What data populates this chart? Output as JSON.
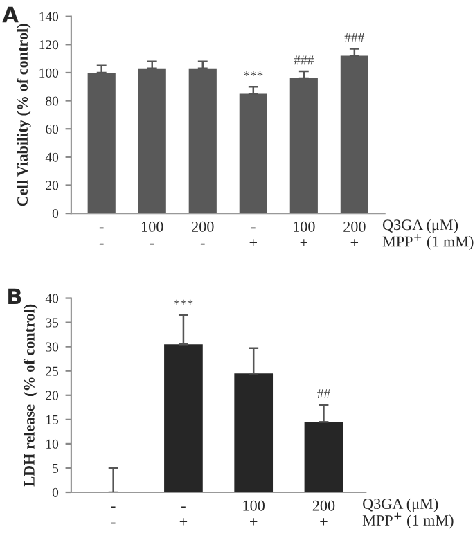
{
  "chart_data": [
    {
      "type": "bar",
      "title": "A",
      "ylabel": "Cell Viability (% of control)",
      "categories": [
        "-\n-",
        "100\n-",
        "200\n-",
        "-\n+",
        "100\n+",
        "200\n+"
      ],
      "values": [
        100,
        103,
        103,
        85,
        96,
        112
      ],
      "color": "#595959",
      "errors": [
        [
          100,
          105
        ],
        [
          103,
          108
        ],
        [
          103,
          108
        ],
        [
          85,
          90
        ],
        [
          96,
          101
        ],
        [
          112,
          117
        ]
      ],
      "ylim": [
        0,
        140
      ],
      "yticks": [
        0,
        20,
        40,
        60,
        80,
        100,
        120,
        140
      ],
      "grid": false,
      "legend": false,
      "annotations": [
        {
          "text": "***",
          "x": "-\n+",
          "y": 90
        },
        {
          "text": "###",
          "x": "100\n+",
          "y": 101
        },
        {
          "text": "###",
          "x": "200\n+",
          "y": 117
        },
        "Q3GA (μM)",
        "MPP$^{+}$ (1 mM)"
      ]
    },
    {
      "type": "bar",
      "title": "B",
      "ylabel": "LDH release  (% of control)",
      "categories": [
        "-\n-",
        "-\n+",
        "100\n+",
        "200\n+"
      ],
      "values": [
        0,
        30.5,
        24.5,
        14.5
      ],
      "color": "#262626",
      "errors": [
        [
          0,
          5
        ],
        [
          30.5,
          36.5
        ],
        [
          24.5,
          29.7
        ],
        [
          14.5,
          18
        ]
      ],
      "ylim": [
        0,
        40
      ],
      "yticks": [
        0,
        5,
        10,
        15,
        20,
        25,
        30,
        35,
        40
      ],
      "grid": false,
      "legend": false,
      "annotations": [
        {
          "text": "***",
          "x": "-\n+",
          "y": 36.5
        },
        {
          "text": "##",
          "x": "200\n+",
          "y": 18
        },
        "Q3GA (μM)",
        "MPP$^{+}$ (1 mM)"
      ]
    }
  ]
}
